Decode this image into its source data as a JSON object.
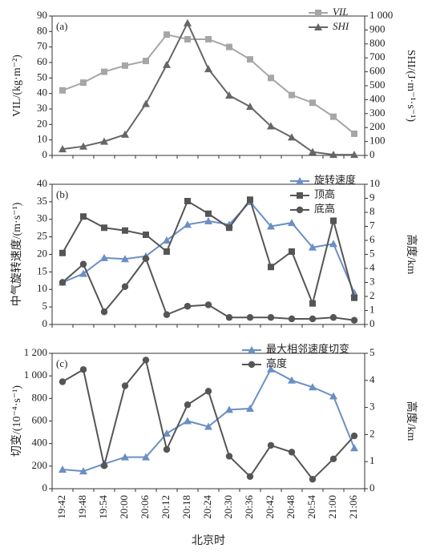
{
  "chart_data": [
    {
      "type": "line",
      "label": "(a)",
      "ylabel": "VIL/(kg·m⁻²)",
      "y2label": "SHI/(J·m⁻¹·s⁻¹)",
      "ylim": [
        0,
        90
      ],
      "yticks": [
        0,
        10,
        20,
        30,
        40,
        50,
        60,
        70,
        80,
        90
      ],
      "y2lim": [
        0,
        1000
      ],
      "y2ticks": [
        0,
        100,
        200,
        300,
        400,
        500,
        600,
        700,
        800,
        900,
        {
          "value": 1000,
          "label": "1 000"
        }
      ],
      "legend": "upper right",
      "series": [
        {
          "name": "VIL",
          "color": "#a6a6a6",
          "marker": "square",
          "values": [
            42,
            47,
            54,
            58,
            61,
            78,
            75,
            75,
            70,
            62,
            50,
            39,
            34,
            25,
            14
          ]
        },
        {
          "name": "SHI",
          "color": "#666666",
          "marker": "triangle",
          "axis": "y2",
          "values": [
            45,
            65,
            100,
            150,
            370,
            650,
            950,
            620,
            430,
            350,
            210,
            130,
            25,
            5,
            5
          ]
        }
      ]
    },
    {
      "type": "line",
      "label": "(b)",
      "ylabel": "中气旋转速度/(m·s⁻¹)",
      "y2label": "高度/km",
      "ylim": [
        0,
        40
      ],
      "yticks": [
        0,
        5,
        10,
        15,
        20,
        25,
        30,
        35,
        40
      ],
      "y2lim": [
        0,
        10
      ],
      "y2ticks": [
        0,
        1,
        2,
        3,
        4,
        5,
        6,
        7,
        8,
        9,
        10
      ],
      "legend": "upper right",
      "series": [
        {
          "name": "旋转速度",
          "color": "#6a8fc4",
          "marker": "triangle",
          "values": [
            12,
            14.5,
            19,
            18.7,
            19.5,
            24,
            28.5,
            29.5,
            28.5,
            35,
            28,
            29,
            22,
            23,
            9
          ]
        },
        {
          "name": "顶高",
          "color": "#555555",
          "marker": "square",
          "axis": "y2",
          "values": [
            5.1,
            7.7,
            6.9,
            6.7,
            6.4,
            5.2,
            8.8,
            7.9,
            6.9,
            8.9,
            4.1,
            5.2,
            1.5,
            7.4,
            1.9
          ]
        },
        {
          "name": "底高",
          "color": "#555555",
          "marker": "circle",
          "axis": "y2",
          "values": [
            3.0,
            4.3,
            0.9,
            2.7,
            4.7,
            0.7,
            1.3,
            1.4,
            0.5,
            0.5,
            0.5,
            0.4,
            0.4,
            0.5,
            0.3
          ]
        }
      ]
    },
    {
      "type": "line",
      "label": "(c)",
      "ylabel": "切变/(10⁻⁴·s⁻¹)",
      "y2label": "高度/km",
      "xlabel": "北京时",
      "categories": [
        "19:42",
        "19:48",
        "19:54",
        "20:00",
        "20:06",
        "20:12",
        "20:18",
        "20:24",
        "20:30",
        "20:36",
        "20:42",
        "20:48",
        "20:54",
        "21:00",
        "21:06"
      ],
      "ylim": [
        0,
        1200
      ],
      "yticks": [
        0,
        200,
        400,
        600,
        800,
        {
          "value": 1000,
          "label": "1 000"
        },
        {
          "value": 1200,
          "label": "1 200"
        }
      ],
      "y2lim": [
        0,
        5
      ],
      "y2ticks": [
        0,
        1,
        2,
        3,
        4,
        5
      ],
      "legend": "upper right",
      "series": [
        {
          "name": "最大相邻速度切变",
          "color": "#6a8fc4",
          "marker": "triangle",
          "values": [
            170,
            155,
            220,
            280,
            280,
            490,
            600,
            550,
            700,
            710,
            1060,
            960,
            900,
            820,
            360
          ]
        },
        {
          "name": "高度",
          "color": "#555555",
          "marker": "circle",
          "axis": "y2",
          "values": [
            3.95,
            4.4,
            0.85,
            3.8,
            4.75,
            1.45,
            3.1,
            3.6,
            1.2,
            0.45,
            1.6,
            1.35,
            0.35,
            1.1,
            1.95
          ]
        }
      ]
    }
  ]
}
